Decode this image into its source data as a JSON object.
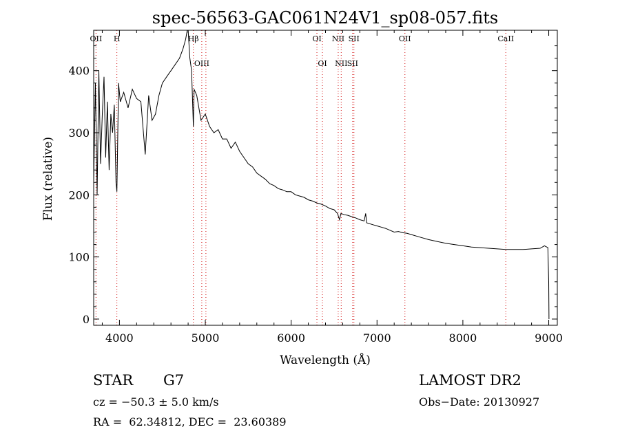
{
  "chart_data": {
    "type": "line",
    "title": "spec-56563-GAC061N24V1_sp08-057.fits",
    "xlabel": "Wavelength (Å)",
    "ylabel": "Flux (relative)",
    "xlim": [
      3700,
      9100
    ],
    "ylim": [
      -10,
      465
    ],
    "x_ticks": [
      4000,
      5000,
      6000,
      7000,
      8000,
      9000
    ],
    "y_ticks": [
      0,
      100,
      200,
      300,
      400
    ],
    "grid": false,
    "series": [
      {
        "x": [
          3700,
          3720,
          3740,
          3760,
          3780,
          3800,
          3820,
          3840,
          3860,
          3880,
          3900,
          3920,
          3940,
          3960,
          3970,
          3990,
          4010,
          4050,
          4100,
          4150,
          4200,
          4250,
          4300,
          4340,
          4380,
          4420,
          4460,
          4500,
          4550,
          4600,
          4650,
          4700,
          4740,
          4770,
          4790,
          4800,
          4820,
          4840,
          4861,
          4870,
          4900,
          4950,
          5000,
          5050,
          5100,
          5150,
          5200,
          5250,
          5300,
          5350,
          5400,
          5450,
          5500,
          5550,
          5600,
          5650,
          5700,
          5750,
          5800,
          5850,
          5900,
          5950,
          6000,
          6050,
          6100,
          6150,
          6200,
          6250,
          6300,
          6350,
          6400,
          6450,
          6500,
          6540,
          6563,
          6580,
          6620,
          6660,
          6700,
          6750,
          6800,
          6850,
          6868,
          6880,
          6950,
          7000,
          7050,
          7100,
          7150,
          7200,
          7250,
          7300,
          7350,
          7400,
          7500,
          7600,
          7700,
          7800,
          7900,
          8000,
          8100,
          8200,
          8300,
          8400,
          8500,
          8600,
          8700,
          8800,
          8900,
          8950,
          8990,
          9000,
          9003
        ],
        "y": [
          220,
          380,
          200,
          400,
          250,
          330,
          390,
          260,
          350,
          240,
          330,
          300,
          345,
          220,
          205,
          380,
          350,
          365,
          340,
          370,
          355,
          350,
          265,
          360,
          320,
          330,
          360,
          380,
          390,
          400,
          410,
          420,
          435,
          450,
          465,
          470,
          420,
          400,
          310,
          370,
          360,
          320,
          330,
          310,
          300,
          305,
          290,
          290,
          275,
          285,
          270,
          260,
          250,
          245,
          235,
          230,
          225,
          218,
          215,
          210,
          208,
          205,
          205,
          200,
          198,
          196,
          192,
          190,
          187,
          185,
          182,
          178,
          176,
          170,
          160,
          170,
          168,
          167,
          165,
          163,
          160,
          158,
          170,
          155,
          152,
          150,
          148,
          146,
          143,
          140,
          141,
          139,
          138,
          136,
          132,
          128,
          125,
          122,
          120,
          118,
          116,
          115,
          114,
          113,
          112,
          112,
          112,
          113,
          114,
          118,
          115,
          60,
          0
        ]
      }
    ],
    "lines": [
      {
        "x": 3727,
        "labels": [
          "OII"
        ]
      },
      {
        "x": 3970,
        "labels": [
          "H"
        ]
      },
      {
        "x": 4861,
        "labels": [
          "Hβ"
        ]
      },
      {
        "x": 4959,
        "labels": [
          "OIII"
        ]
      },
      {
        "x": 5007,
        "labels": []
      },
      {
        "x": 6300,
        "labels": [
          "OI"
        ]
      },
      {
        "x": 6364,
        "labels": [
          "OI"
        ]
      },
      {
        "x": 6548,
        "labels": [
          "NII"
        ]
      },
      {
        "x": 6583,
        "labels": [
          "NII"
        ]
      },
      {
        "x": 6716,
        "labels": [
          "SII"
        ]
      },
      {
        "x": 6731,
        "labels": [
          "SII"
        ]
      },
      {
        "x": 7325,
        "labels": [
          "OII"
        ]
      },
      {
        "x": 8500,
        "labels": [
          "CaII"
        ]
      }
    ],
    "colors": {
      "spectrum": "#000000",
      "line_markers": "#d00000"
    }
  },
  "info": {
    "object_type": "STAR",
    "subclass": "G7",
    "survey": "LAMOST DR2",
    "cz": "cz = −50.3 ± 5.0 km/s",
    "obs_date": "Obs−Date: 20130927",
    "coords": "RA =  62.34812, DEC =  23.60389"
  }
}
